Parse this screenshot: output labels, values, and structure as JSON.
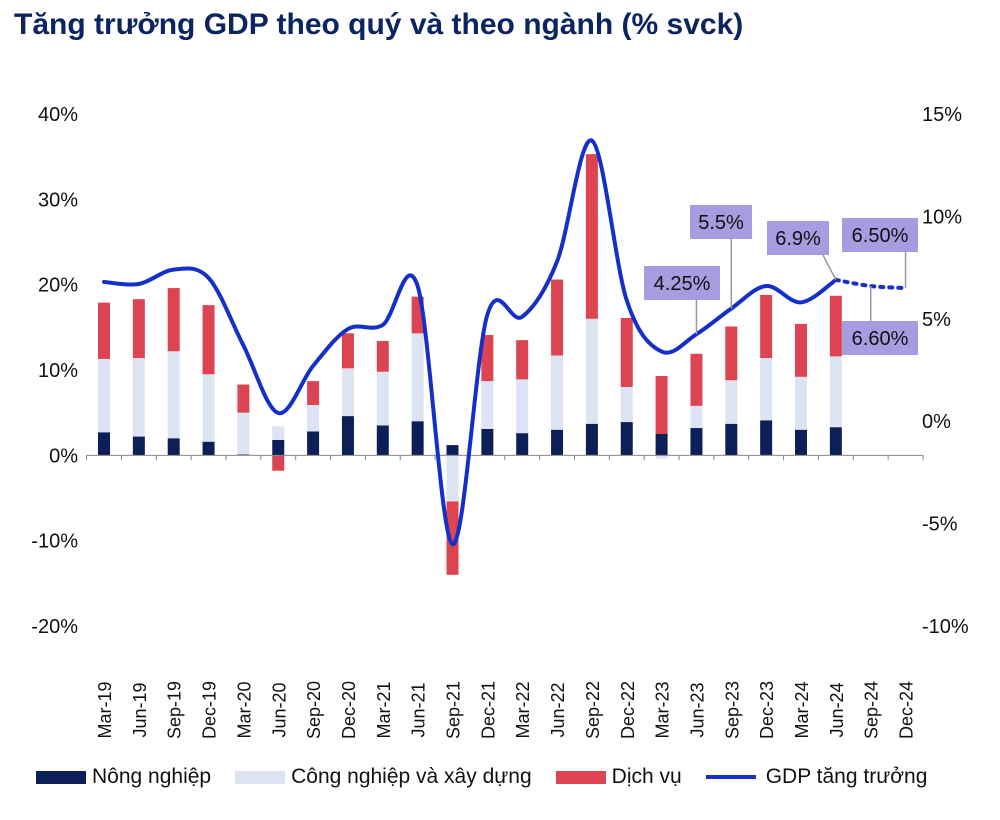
{
  "title": "Tăng trưởng GDP theo quý và theo ngành (% svck)",
  "colors": {
    "agriculture": "#0d1f57",
    "industry": "#dce3f2",
    "services": "#dc4452",
    "gdp_line": "#1530c8",
    "callout_bg": "#a99be0",
    "title": "#0b2560"
  },
  "legend": {
    "agriculture": "Nông nghiệp",
    "industry": "Công nghiệp và xây dựng",
    "services": "Dịch vụ",
    "gdp": "GDP tăng trưởng"
  },
  "chart_data": {
    "type": "bar",
    "stacked": true,
    "categories": [
      "Mar-19",
      "Jun-19",
      "Sep-19",
      "Dec-19",
      "Mar-20",
      "Jun-20",
      "Sep-20",
      "Dec-20",
      "Mar-21",
      "Jun-21",
      "Sep-21",
      "Dec-21",
      "Mar-22",
      "Jun-22",
      "Sep-22",
      "Dec-22",
      "Mar-23",
      "Jun-23",
      "Sep-23",
      "Dec-23",
      "Mar-24",
      "Jun-24",
      "Sep-24",
      "Dec-24"
    ],
    "y_left": {
      "min": -20,
      "max": 40,
      "step": 10,
      "ticks": [
        "-20%",
        "-10%",
        "0%",
        "10%",
        "20%",
        "30%",
        "40%"
      ]
    },
    "y_right": {
      "min": -10,
      "max": 15,
      "step": 5,
      "ticks": [
        "-10%",
        "-5%",
        "0%",
        "5%",
        "10%",
        "15%"
      ]
    },
    "series": [
      {
        "name": "Nông nghiệp",
        "axis": "left",
        "values": [
          2.7,
          2.2,
          2.0,
          1.6,
          0.1,
          1.8,
          2.8,
          4.6,
          3.5,
          4.0,
          1.2,
          3.1,
          2.6,
          3.0,
          3.7,
          3.9,
          2.5,
          3.2,
          3.7,
          4.1,
          3.0,
          3.3,
          null,
          null
        ]
      },
      {
        "name": "Công nghiệp và xây dựng",
        "axis": "left",
        "values": [
          8.6,
          9.2,
          10.2,
          7.9,
          4.9,
          1.6,
          3.1,
          5.6,
          6.3,
          10.3,
          -5.4,
          5.6,
          6.3,
          8.7,
          12.3,
          4.1,
          -0.4,
          2.6,
          5.1,
          7.3,
          6.2,
          8.3,
          null,
          null
        ]
      },
      {
        "name": "Dịch vụ",
        "axis": "left",
        "values": [
          6.6,
          6.9,
          7.4,
          8.1,
          3.3,
          -1.8,
          2.8,
          4.1,
          3.6,
          4.3,
          -8.6,
          5.4,
          4.6,
          8.9,
          19.3,
          8.1,
          6.8,
          6.1,
          6.3,
          7.4,
          6.2,
          7.1,
          null,
          null
        ]
      },
      {
        "name": "GDP tăng trưởng",
        "axis": "right",
        "type": "line",
        "values": [
          6.8,
          6.7,
          7.4,
          7.0,
          3.7,
          0.4,
          2.7,
          4.5,
          4.7,
          6.6,
          -6.0,
          5.2,
          5.1,
          7.8,
          13.7,
          5.9,
          3.4,
          4.25,
          5.5,
          6.6,
          5.8,
          6.9,
          6.6,
          6.5
        ],
        "forecast_from_index": 21
      }
    ],
    "annotations": [
      {
        "text": "4.25%",
        "index": 17
      },
      {
        "text": "5.5%",
        "index": 18
      },
      {
        "text": "6.9%",
        "index": 21
      },
      {
        "text": "6.50%",
        "index": 23
      },
      {
        "text": "6.60%",
        "index": 22
      }
    ]
  }
}
